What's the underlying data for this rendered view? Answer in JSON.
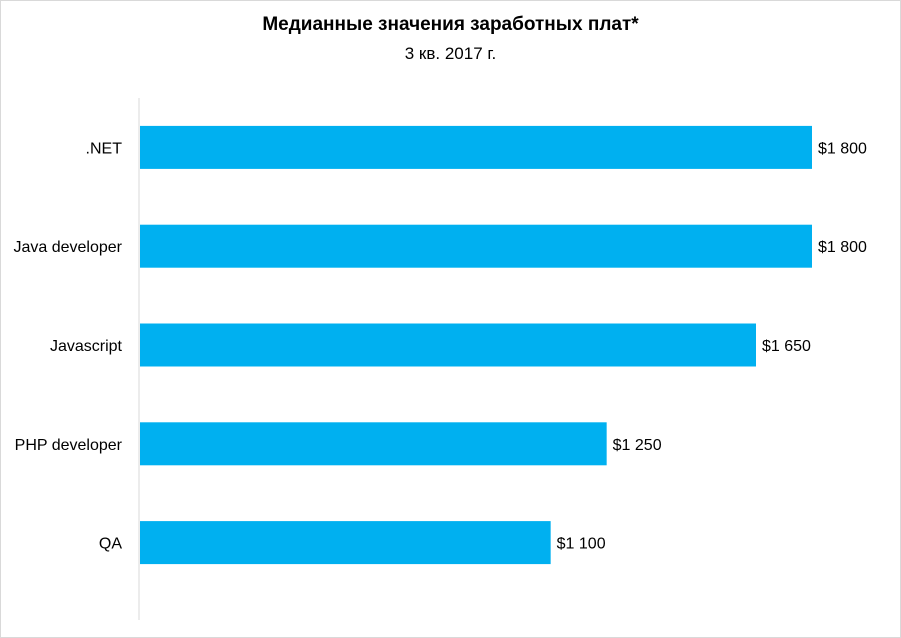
{
  "chart_data": {
    "type": "bar",
    "orientation": "horizontal",
    "title": "Медианные значения заработных плат*",
    "subtitle": "3 кв. 2017 г.",
    "categories": [
      ".NET",
      "Java developer",
      "Javascript",
      "PHP developer",
      "QA"
    ],
    "values": [
      1800,
      1800,
      1650,
      1250,
      1100
    ],
    "value_labels": [
      "$1 800",
      "$1 800",
      "$1 650",
      "$1 250",
      "$1 100"
    ],
    "xlim": [
      0,
      1800
    ],
    "grid": false,
    "bar_color": "#00b0f0",
    "axis_color": "#d9d9d9"
  }
}
